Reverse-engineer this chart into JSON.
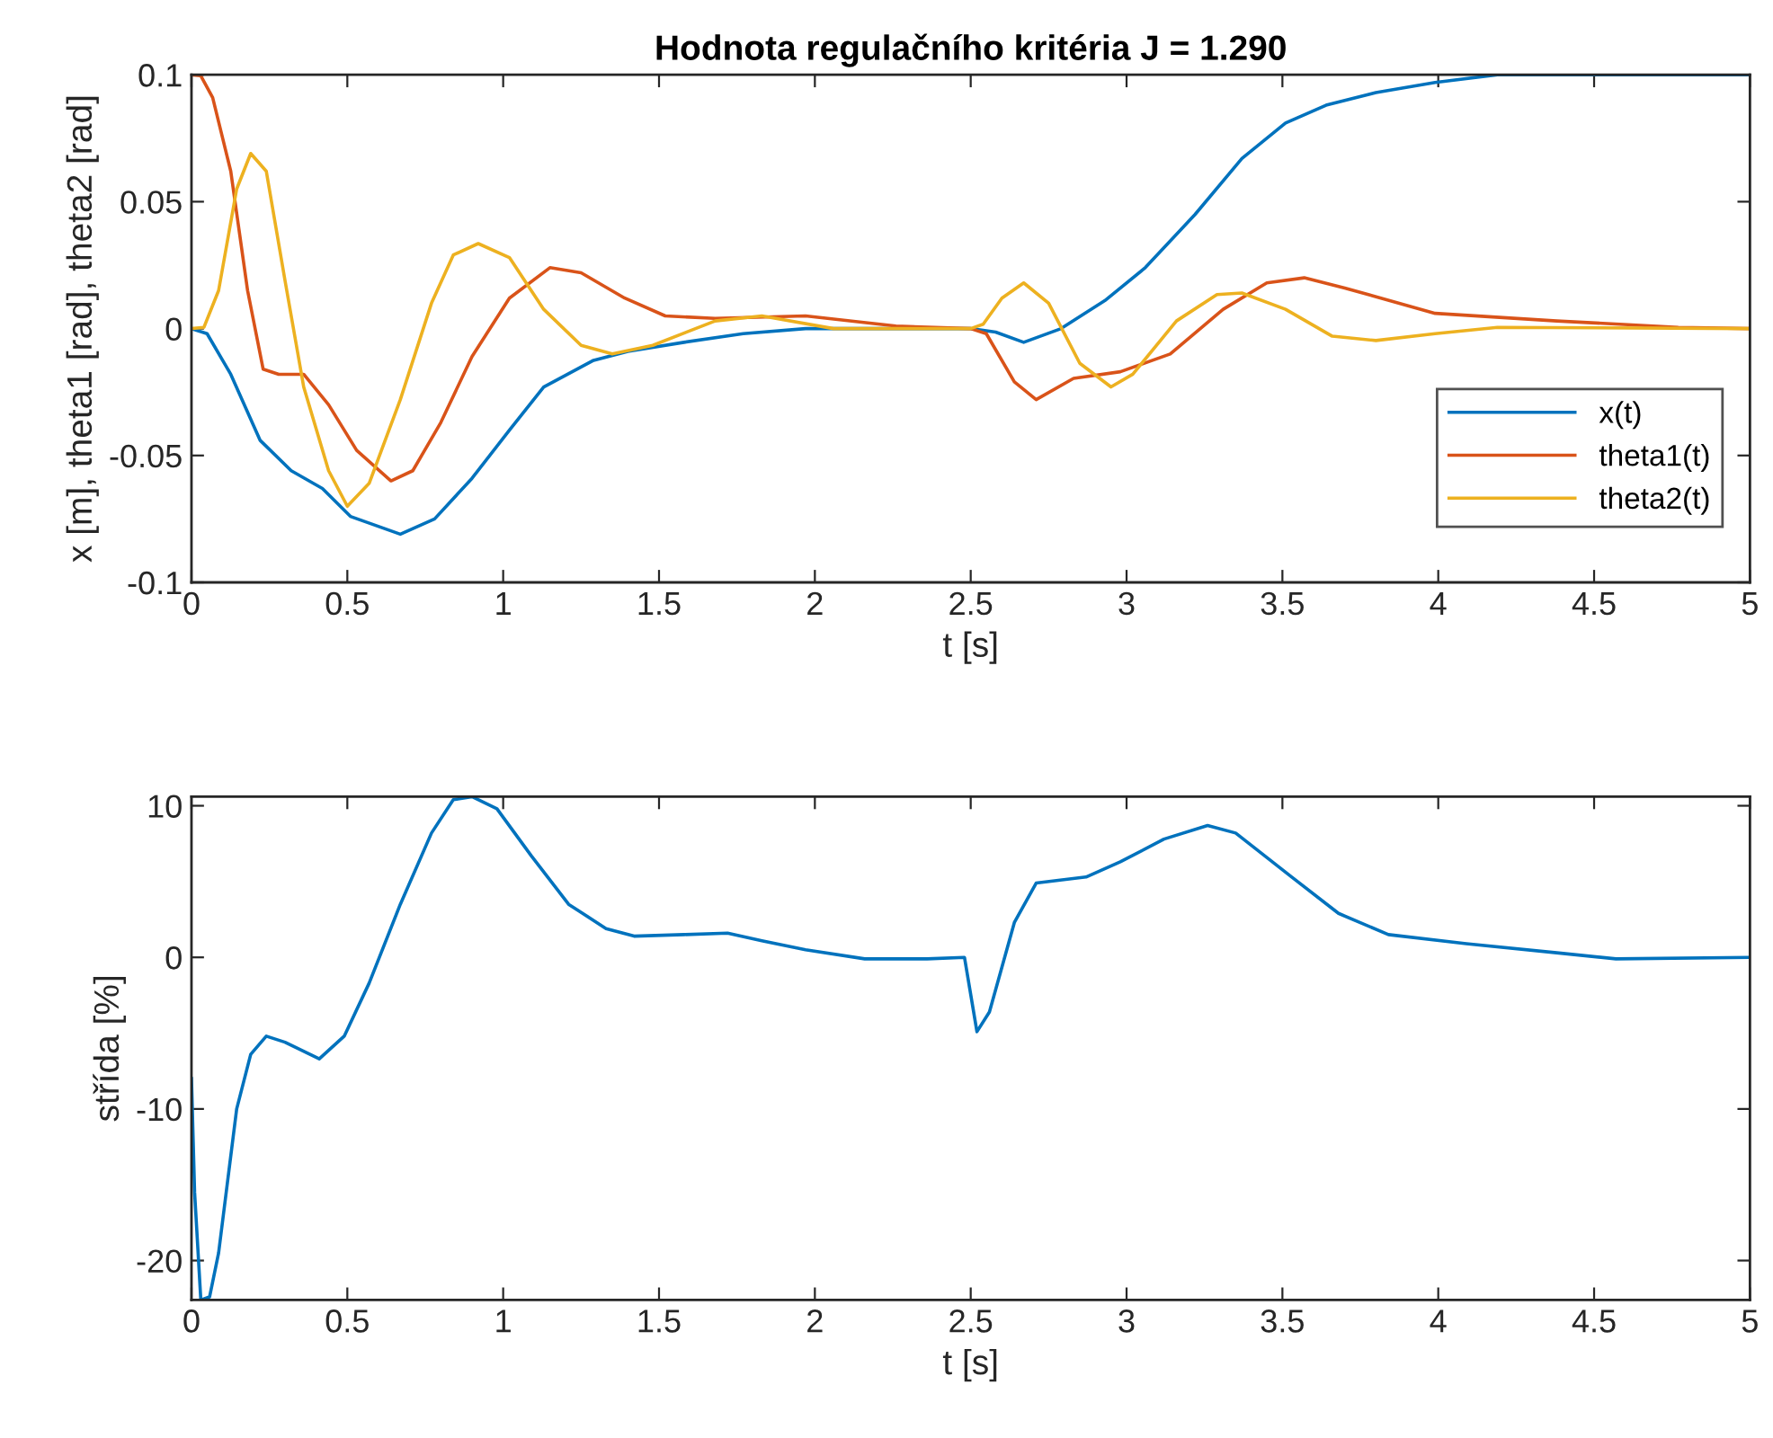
{
  "chart_data": [
    {
      "type": "line",
      "title": "Hodnota regulačního kritéria J = 1.290",
      "xlabel": "t [s]",
      "ylabel": "x [m], theta1 [rad], theta2 [rad]",
      "xlim": [
        0,
        5
      ],
      "ylim": [
        -0.1,
        0.1
      ],
      "xticks": [
        0,
        0.5,
        1,
        1.5,
        2,
        2.5,
        3,
        3.5,
        4,
        4.5,
        5
      ],
      "yticks": [
        -0.1,
        -0.05,
        0,
        0.05,
        0.1
      ],
      "grid": false,
      "legend": "lower right",
      "series": [
        {
          "name": "x(t)",
          "color": "#0072bd",
          "x": [
            0,
            0.05,
            0.126,
            0.22,
            0.32,
            0.42,
            0.51,
            0.67,
            0.78,
            0.9,
            1.02,
            1.13,
            1.29,
            1.4,
            1.58,
            1.77,
            1.97,
            2.26,
            2.5,
            2.58,
            2.67,
            2.79,
            2.93,
            3.06,
            3.22,
            3.37,
            3.51,
            3.64,
            3.8,
            3.99,
            4.19,
            4.38,
            5
          ],
          "values": [
            0,
            -0.002,
            -0.018,
            -0.044,
            -0.056,
            -0.063,
            -0.074,
            -0.081,
            -0.075,
            -0.059,
            -0.04,
            -0.023,
            -0.0125,
            -0.009,
            -0.0054,
            -0.002,
            0,
            0,
            0,
            -0.0014,
            -0.0054,
            0,
            0.011,
            0.024,
            0.045,
            0.067,
            0.081,
            0.088,
            0.093,
            0.097,
            0.1,
            0.1,
            0.1
          ]
        },
        {
          "name": "theta1(t)",
          "color": "#d95319",
          "x": [
            0,
            0.03,
            0.068,
            0.126,
            0.18,
            0.23,
            0.28,
            0.36,
            0.44,
            0.53,
            0.64,
            0.71,
            0.8,
            0.9,
            1.02,
            1.15,
            1.25,
            1.39,
            1.52,
            1.68,
            1.97,
            2.26,
            2.5,
            2.55,
            2.64,
            2.71,
            2.83,
            2.98,
            3.14,
            3.31,
            3.45,
            3.57,
            3.7,
            3.99,
            4.38,
            4.77,
            5
          ],
          "values": [
            0.1,
            0.0996,
            0.091,
            0.062,
            0.015,
            -0.016,
            -0.018,
            -0.018,
            -0.03,
            -0.048,
            -0.06,
            -0.056,
            -0.037,
            -0.011,
            0.012,
            0.024,
            0.022,
            0.012,
            0.005,
            0.004,
            0.005,
            0.001,
            0,
            -0.002,
            -0.021,
            -0.028,
            -0.0196,
            -0.017,
            -0.01,
            0.0076,
            0.018,
            0.02,
            0.016,
            0.006,
            0.003,
            0.0005,
            0
          ]
        },
        {
          "name": "theta2(t)",
          "color": "#edb120",
          "x": [
            0,
            0.04,
            0.087,
            0.145,
            0.19,
            0.24,
            0.3,
            0.36,
            0.44,
            0.5,
            0.57,
            0.67,
            0.77,
            0.84,
            0.92,
            1.02,
            1.13,
            1.25,
            1.35,
            1.48,
            1.68,
            1.83,
            2.06,
            2.5,
            2.54,
            2.6,
            2.67,
            2.75,
            2.85,
            2.95,
            3.02,
            3.16,
            3.29,
            3.37,
            3.51,
            3.66,
            3.8,
            3.99,
            4.19,
            5
          ],
          "values": [
            0,
            0.0005,
            0.015,
            0.055,
            0.069,
            0.062,
            0.019,
            -0.023,
            -0.056,
            -0.07,
            -0.061,
            -0.028,
            0.01,
            0.029,
            0.0335,
            0.028,
            0.0076,
            -0.0066,
            -0.01,
            -0.0066,
            0.003,
            0.005,
            0,
            0,
            0.0017,
            0.012,
            0.018,
            0.01,
            -0.0137,
            -0.023,
            -0.018,
            0.003,
            0.0134,
            0.014,
            0.0076,
            -0.003,
            -0.0047,
            -0.002,
            0.0005,
            0
          ]
        }
      ]
    },
    {
      "type": "line",
      "xlabel": "t [s]",
      "ylabel": "střída [%]",
      "xlim": [
        0,
        5
      ],
      "ylim": [
        -22.6,
        10.6
      ],
      "xticks": [
        0,
        0.5,
        1,
        1.5,
        2,
        2.5,
        3,
        3.5,
        4,
        4.5,
        5
      ],
      "yticks": [
        -20,
        -10,
        0,
        10
      ],
      "grid": false,
      "series": [
        {
          "color": "#0072bd",
          "x": [
            0,
            0.01,
            0.03,
            0.058,
            0.087,
            0.145,
            0.19,
            0.24,
            0.3,
            0.41,
            0.49,
            0.57,
            0.67,
            0.77,
            0.84,
            0.9,
            0.98,
            1.09,
            1.21,
            1.33,
            1.42,
            1.58,
            1.72,
            1.83,
            1.97,
            2.16,
            2.36,
            2.48,
            2.52,
            2.56,
            2.64,
            2.71,
            2.87,
            2.98,
            3.12,
            3.26,
            3.35,
            3.53,
            3.68,
            3.84,
            4.09,
            4.38,
            4.57,
            5
          ],
          "values": [
            -8.0,
            -15.5,
            -22.6,
            -22.4,
            -19.5,
            -10.0,
            -6.4,
            -5.2,
            -5.6,
            -6.7,
            -5.2,
            -1.7,
            3.5,
            8.2,
            10.4,
            10.6,
            9.8,
            6.7,
            3.5,
            1.9,
            1.4,
            1.5,
            1.6,
            1.1,
            0.5,
            -0.1,
            -0.1,
            0,
            -4.9,
            -3.6,
            2.3,
            4.9,
            5.3,
            6.3,
            7.8,
            8.7,
            8.2,
            5.3,
            2.9,
            1.5,
            0.9,
            0.3,
            -0.1,
            0
          ]
        }
      ]
    }
  ]
}
